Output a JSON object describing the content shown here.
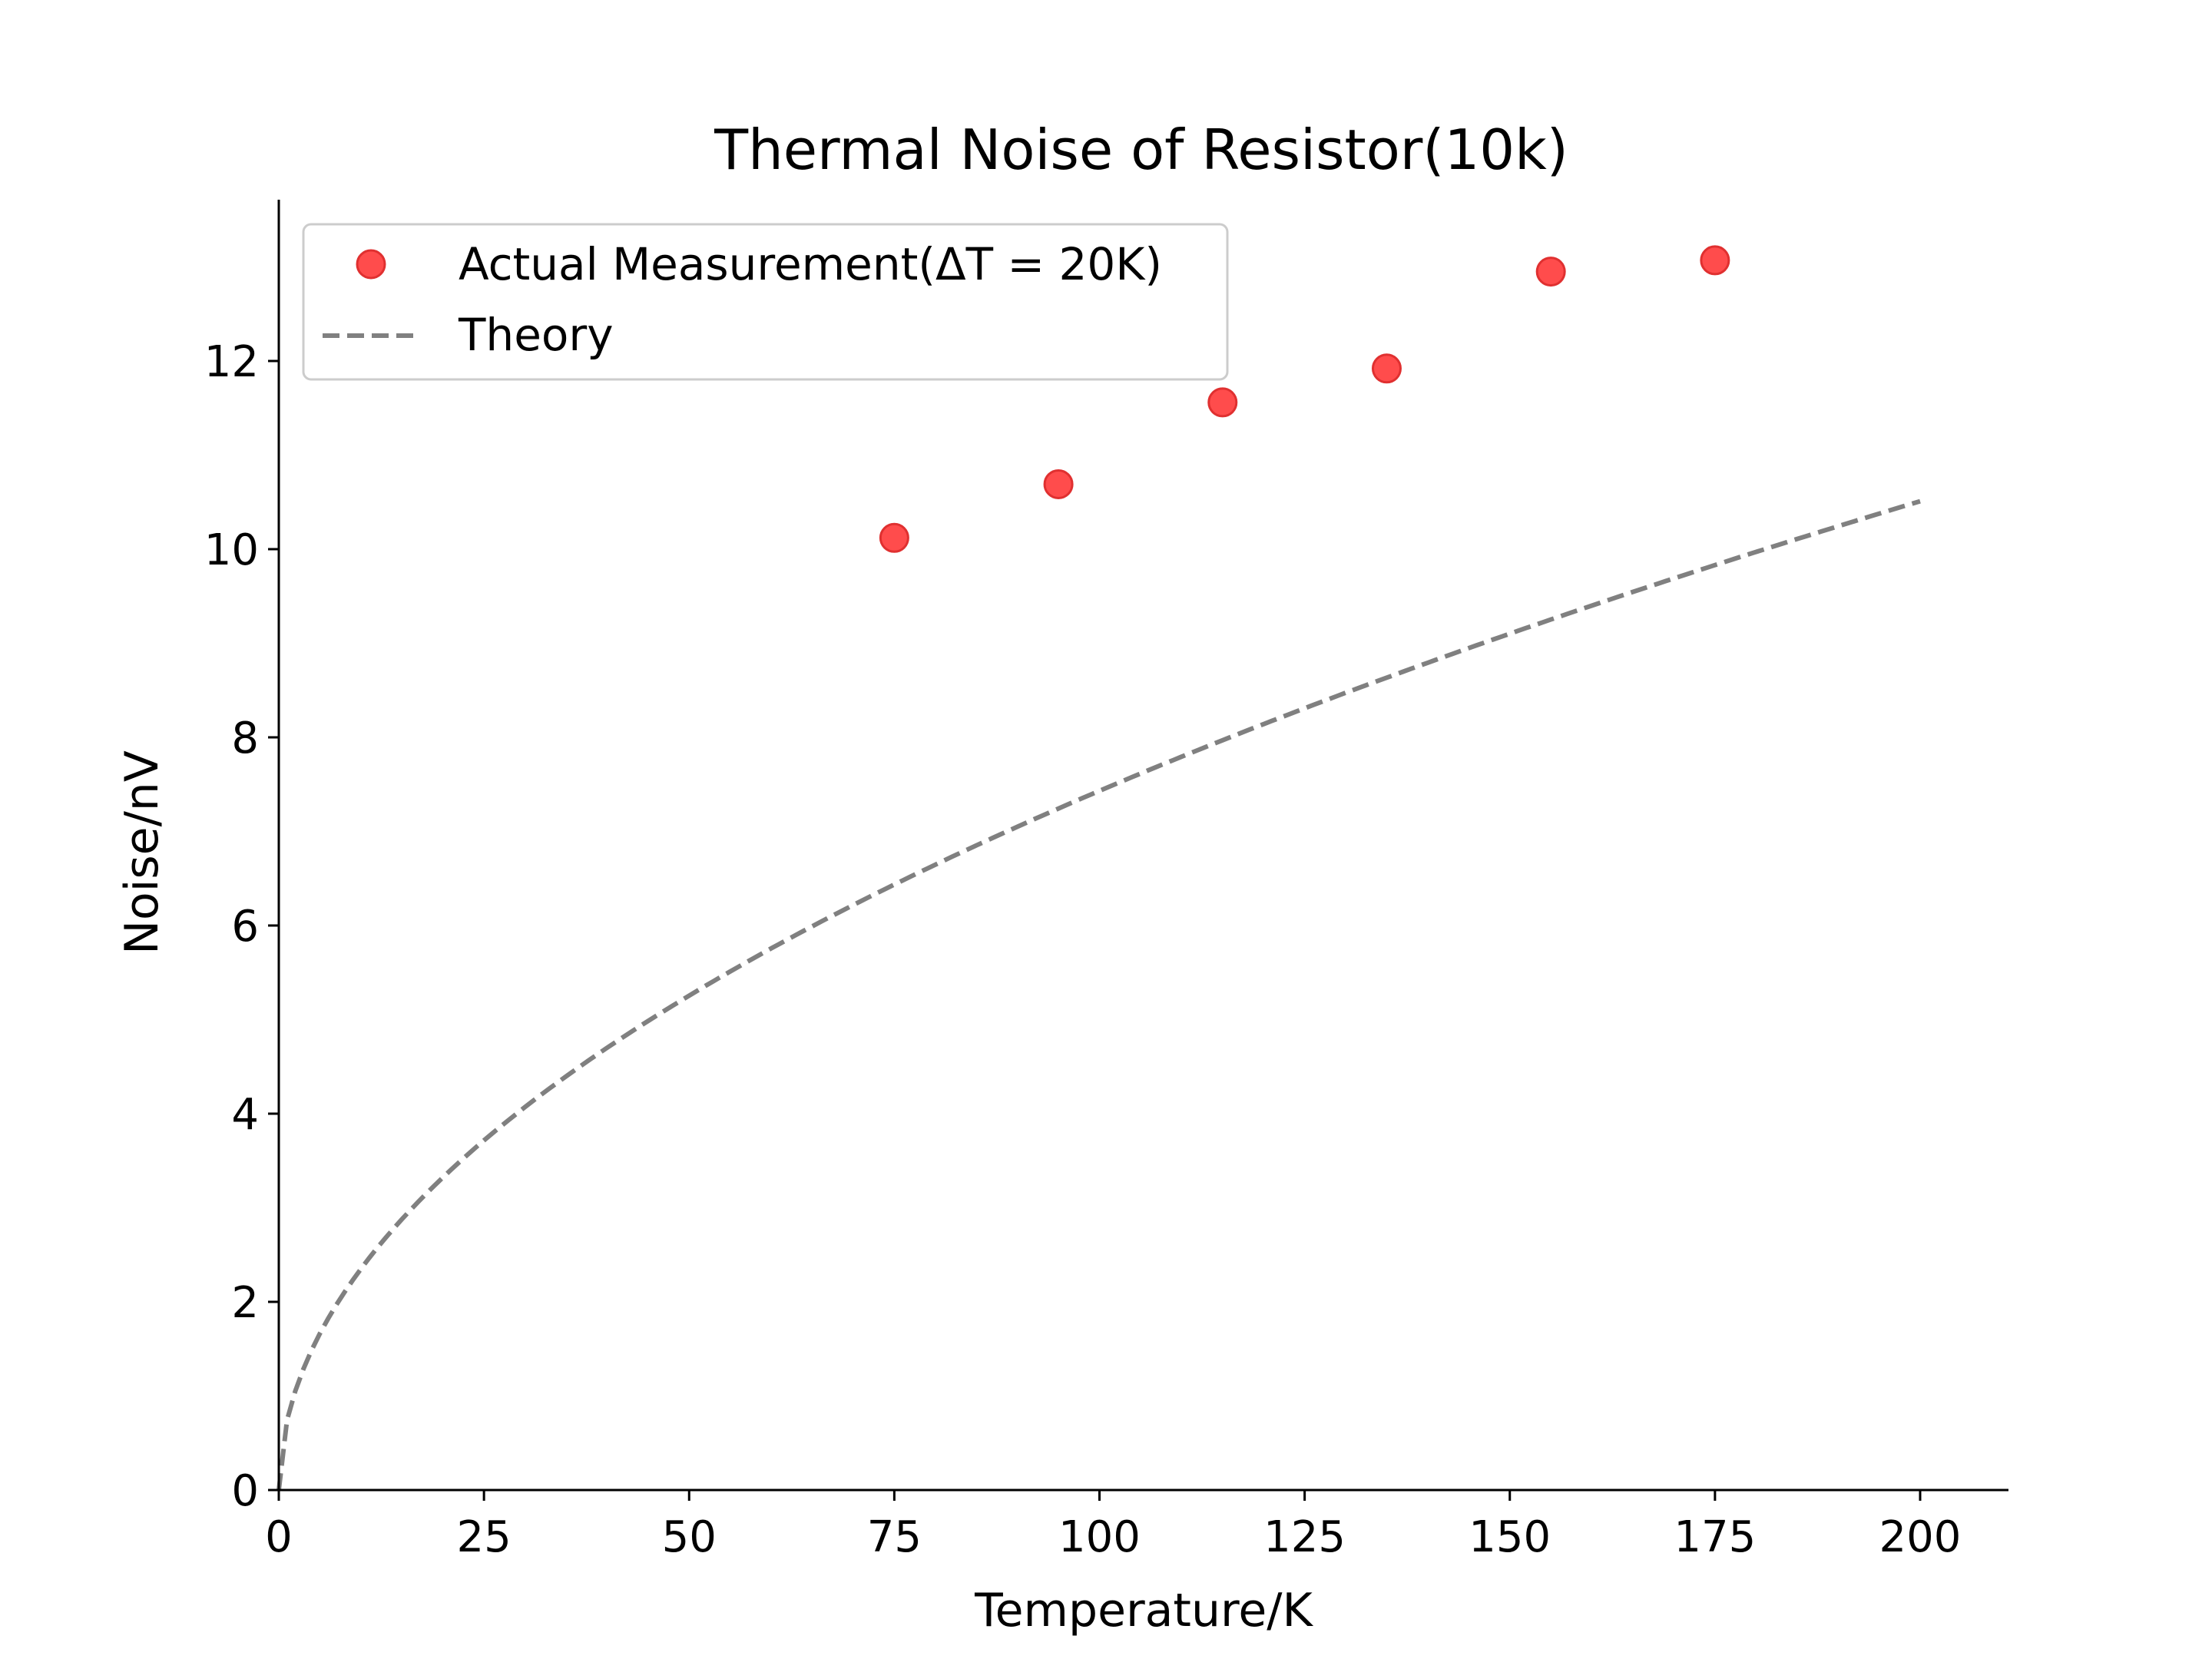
{
  "chart_data": {
    "type": "scatter",
    "title": "Thermal Noise of Resistor(10k)",
    "xlabel": "Temperature/K",
    "ylabel": "Noise/nV",
    "xlim": [
      0,
      210
    ],
    "ylim": [
      0,
      13.8
    ],
    "xticks": [
      0,
      25,
      50,
      75,
      100,
      125,
      150,
      175,
      200
    ],
    "yticks": [
      0,
      2,
      4,
      6,
      8,
      10,
      12
    ],
    "grid": false,
    "legend_position": "upper-left",
    "series": [
      {
        "name": "Actual Measurement(ΔT = 20K)",
        "kind": "scatter",
        "color": "#ff0000",
        "x": [
          75,
          95,
          115,
          135,
          155,
          175
        ],
        "y": [
          10.12,
          10.69,
          11.56,
          11.92,
          12.95,
          13.07
        ]
      },
      {
        "name": "Theory",
        "kind": "dashed-line",
        "color": "#808080",
        "formula": "sqrt(4 k_B T R), R = 10k",
        "x_range": [
          0,
          200
        ]
      }
    ]
  }
}
